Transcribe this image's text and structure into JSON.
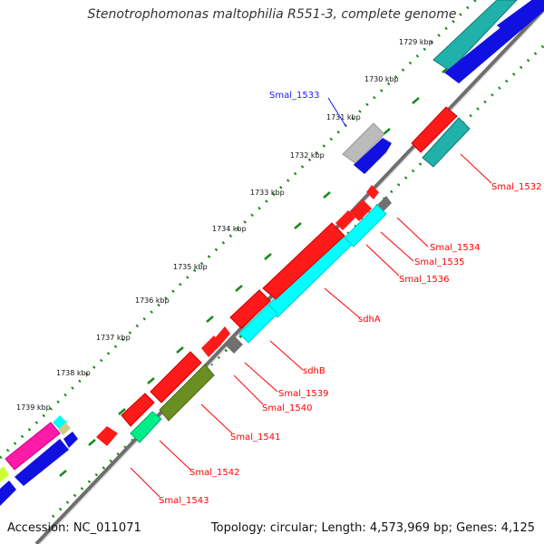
{
  "title": "Stenotrophomonas maltophilia R551-3, complete genome",
  "ticks": [
    "1729 kbp",
    "1730 kbp",
    "1731 kbp",
    "1732 kbp",
    "1733 kbp",
    "1734 kbp",
    "1735 kbp",
    "1736 kbp",
    "1737 kbp",
    "1738 kbp",
    "1739 kbp"
  ],
  "gene_labels": [
    {
      "name": "Smal_1533",
      "color": "#1a1aff"
    },
    {
      "name": "Smal_1532",
      "color": "#ff0000"
    },
    {
      "name": "Smal_1534",
      "color": "#ff0000"
    },
    {
      "name": "Smal_1535",
      "color": "#ff0000"
    },
    {
      "name": "Smal_1536",
      "color": "#ff0000"
    },
    {
      "name": "sdhA",
      "color": "#ff0000"
    },
    {
      "name": "sdhB",
      "color": "#ff0000"
    },
    {
      "name": "Smal_1539",
      "color": "#ff0000"
    },
    {
      "name": "Smal_1540",
      "color": "#ff0000"
    },
    {
      "name": "Smal_1541",
      "color": "#ff0000"
    },
    {
      "name": "Smal_1542",
      "color": "#ff0000"
    },
    {
      "name": "Smal_1543",
      "color": "#ff0000"
    }
  ],
  "accession": "Accession: NC_011071",
  "summary": "Topology: circular; Length: 4,573,969 bp; Genes: 4,125",
  "colors": {
    "backbone": "#808080",
    "tick_dots": "#1a8a1a",
    "label_red": "#ff0000",
    "label_blue": "#1a1aff"
  }
}
